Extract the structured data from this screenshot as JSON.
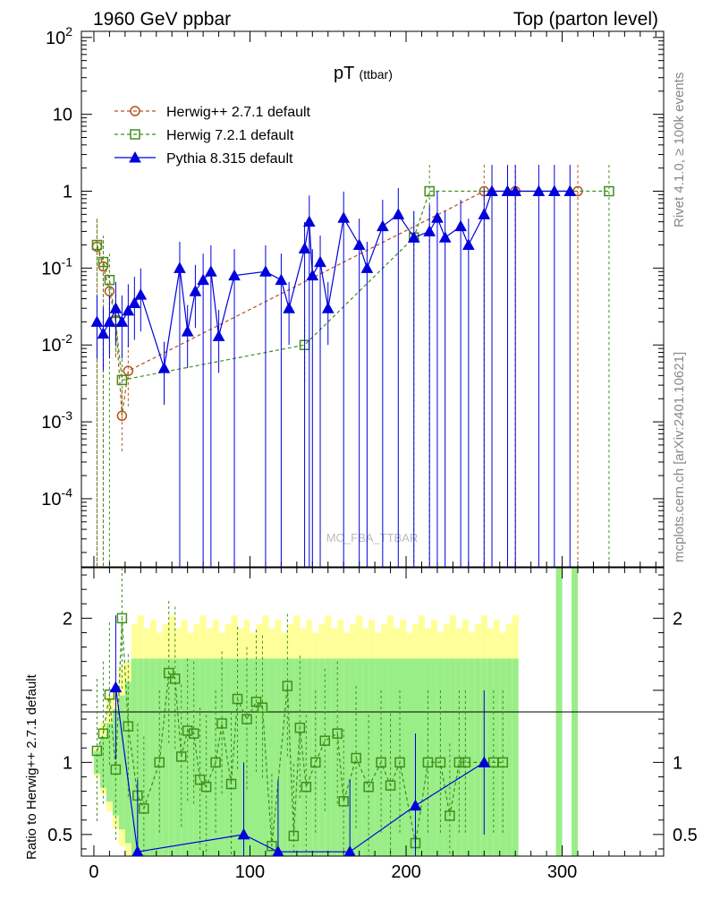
{
  "header": {
    "left": "1960 GeV ppbar",
    "right": "Top (parton level)"
  },
  "side": {
    "rivet": "Rivet 4.1.0, ≥ 100k events",
    "mcplots": "mcplots.cern.ch [arXiv:2401.10621]"
  },
  "watermark": "MC_FBA_TTBAR",
  "colors": {
    "herwigpp": "#b5521a",
    "herwig7": "#3f8f1a",
    "pythia": "#0000dd",
    "band_yellow": "#ffff99",
    "band_green": "#99ee88"
  },
  "chart_data": {
    "type": "line",
    "title": "pT",
    "title_sub": "(ttbar)",
    "xlim": [
      -8,
      365
    ],
    "xticks": [
      "0",
      "100",
      "200",
      "300"
    ],
    "xtick_values": [
      0,
      100,
      200,
      300
    ],
    "ylim": [
      1.3e-05,
      120
    ],
    "yscale": "log",
    "yticks": [
      "10^-4",
      "10^-3",
      "10^-2",
      "10^-1",
      "1",
      "10",
      "10^2"
    ],
    "ratio": {
      "ylabel": "Ratio to Herwig++ 2.7.1 default",
      "ylim": [
        0.35,
        2.35
      ],
      "yticks": [
        "0.5",
        "1",
        "2"
      ],
      "ytick_values": [
        0.5,
        1,
        2
      ],
      "reference_line": 1
    },
    "legend": [
      {
        "key": "herwigpp",
        "label": "Herwig++ 2.7.1 default"
      },
      {
        "key": "herwig7",
        "label": "Herwig 7.2.1 default"
      },
      {
        "key": "pythia",
        "label": "Pythia 8.315 default"
      }
    ],
    "series": [
      {
        "name": "Herwig++ 2.7.1 default",
        "key": "herwigpp",
        "marker": "circle",
        "style": "dashed",
        "x": [
          2,
          6,
          10,
          14,
          18,
          22,
          250,
          270,
          310
        ],
        "y": [
          0.19,
          0.105,
          0.05,
          0.021,
          0.0012,
          0.0046,
          1,
          1,
          1
        ]
      },
      {
        "name": "Herwig 7.2.1 default",
        "key": "herwig7",
        "marker": "square",
        "style": "dashed",
        "x": [
          2,
          6,
          10,
          14,
          18,
          135,
          205,
          215,
          330
        ],
        "y": [
          0.2,
          0.12,
          0.07,
          0.02,
          0.0035,
          0.01,
          0.25,
          1,
          1
        ]
      },
      {
        "name": "Pythia 8.315 default",
        "key": "pythia",
        "marker": "triangle",
        "style": "solid",
        "x": [
          2,
          6,
          10,
          14,
          18,
          22,
          26,
          30,
          45,
          55,
          60,
          65,
          70,
          75,
          80,
          90,
          110,
          120,
          125,
          135,
          138,
          140,
          145,
          150,
          160,
          170,
          175,
          185,
          195,
          205,
          215,
          220,
          225,
          235,
          240,
          250,
          255,
          265,
          270,
          285,
          295,
          305
        ],
        "y": [
          0.02,
          0.014,
          0.02,
          0.03,
          0.02,
          0.028,
          0.035,
          0.045,
          0.005,
          0.1,
          0.015,
          0.05,
          0.07,
          0.09,
          0.013,
          0.08,
          0.09,
          0.07,
          0.03,
          0.18,
          0.4,
          0.08,
          0.12,
          0.03,
          0.45,
          0.2,
          0.1,
          0.35,
          0.5,
          0.25,
          0.3,
          0.45,
          0.25,
          0.35,
          0.2,
          0.5,
          1,
          1,
          1,
          1,
          1,
          1
        ]
      }
    ],
    "ratio_series": [
      {
        "name": "Herwig 7.2.1 default",
        "key": "herwig7",
        "x": [
          2,
          6,
          10,
          14,
          18,
          22,
          28,
          32,
          42,
          48,
          52,
          56,
          60,
          64,
          68,
          72,
          78,
          82,
          88,
          92,
          98,
          104,
          108,
          114,
          124,
          128,
          132,
          136,
          142,
          148,
          156,
          160,
          168,
          176,
          184,
          190,
          196,
          206,
          214,
          222,
          228,
          234,
          238,
          256,
          262
        ],
        "y": [
          1.08,
          1.2,
          1.47,
          0.95,
          2.0,
          1.25,
          0.77,
          0.68,
          1.0,
          1.62,
          1.58,
          1.04,
          1.22,
          1.2,
          0.88,
          0.83,
          1.0,
          1.27,
          0.85,
          1.44,
          1.3,
          1.42,
          1.38,
          0.42,
          1.53,
          0.49,
          1.24,
          0.83,
          1.0,
          1.15,
          1.2,
          0.73,
          1.03,
          0.83,
          1.0,
          0.84,
          1.0,
          0.44,
          1.0,
          1.0,
          0.63,
          1.0,
          1.0,
          1.0,
          1.0
        ]
      },
      {
        "name": "Pythia 8.315 default",
        "key": "pythia",
        "x": [
          14,
          28,
          96,
          118,
          164,
          206,
          250
        ],
        "y": [
          1.52,
          0.38,
          0.5,
          0.38,
          0.38,
          0.7,
          1.0
        ]
      }
    ]
  }
}
